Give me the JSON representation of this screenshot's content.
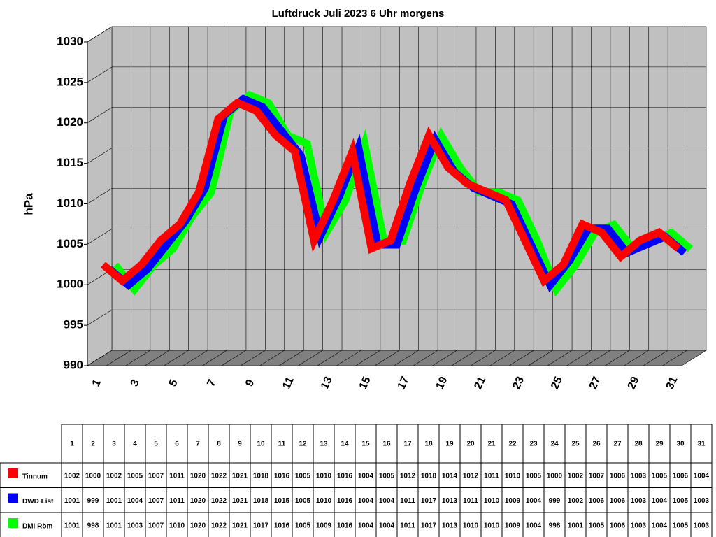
{
  "chart_data": {
    "type": "line3d",
    "title": "Luftdruck Juli 2023 6 Uhr morgens",
    "ylabel": "hPa",
    "categories": [
      "1",
      "2",
      "3",
      "4",
      "5",
      "6",
      "7",
      "8",
      "9",
      "10",
      "11",
      "12",
      "13",
      "14",
      "15",
      "16",
      "17",
      "18",
      "19",
      "20",
      "21",
      "22",
      "23",
      "24",
      "25",
      "26",
      "27",
      "28",
      "29",
      "30",
      "31"
    ],
    "series": [
      {
        "name": "Tinnum",
        "color": "#ff0000",
        "values": [
          1002,
          1000,
          1002,
          1005,
          1007,
          1011,
          1020,
          1022,
          1021,
          1018,
          1016,
          1005,
          1010,
          1016,
          1004,
          1005,
          1012,
          1018,
          1014,
          1012,
          1011,
          1010,
          1005,
          1000,
          1002,
          1007,
          1006,
          1003,
          1005,
          1006,
          1004
        ]
      },
      {
        "name": "DWD List",
        "color": "#0000ff",
        "values": [
          1001,
          999,
          1001,
          1004,
          1007,
          1011,
          1020,
          1022,
          1021,
          1018,
          1015,
          1005,
          1010,
          1016,
          1004,
          1004,
          1011,
          1017,
          1013,
          1011,
          1010,
          1009,
          1004,
          999,
          1002,
          1006,
          1006,
          1003,
          1004,
          1005,
          1003
        ]
      },
      {
        "name": "DMI Röm",
        "color": "#00ff00",
        "values": [
          1001,
          998,
          1001,
          1003,
          1007,
          1010,
          1020,
          1022,
          1021,
          1017,
          1016,
          1005,
          1009,
          1016,
          1004,
          1004,
          1011,
          1017,
          1013,
          1010,
          1010,
          1009,
          1004,
          998,
          1001,
          1005,
          1006,
          1003,
          1004,
          1005,
          1003
        ]
      }
    ],
    "ylim": [
      990,
      1030
    ],
    "yticks": [
      990,
      995,
      1000,
      1005,
      1010,
      1015,
      1020,
      1025,
      1030
    ],
    "grid": true
  }
}
